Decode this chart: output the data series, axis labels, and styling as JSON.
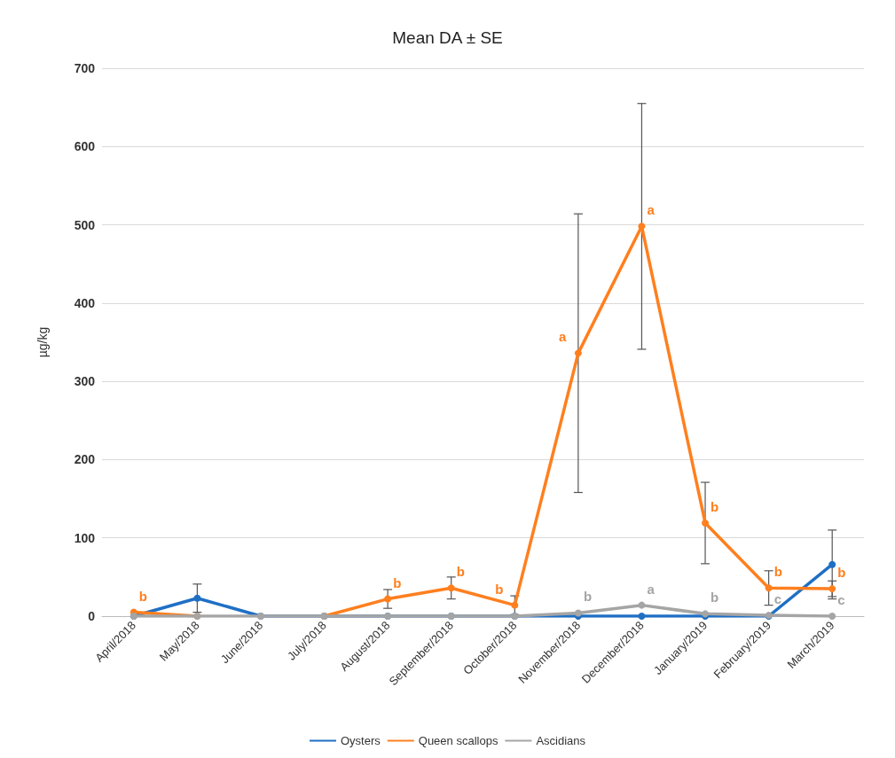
{
  "chart_data": {
    "type": "line",
    "title": "Mean DA ± SE",
    "ylabel": "µg/kg",
    "categories": [
      "April/2018",
      "May/2018",
      "June/2018",
      "July/2018",
      "August/2018",
      "September/2018",
      "October/2018",
      "November/2018",
      "December/2018",
      "January/2019",
      "February/2019",
      "March/2019"
    ],
    "series": [
      {
        "name": "Oysters",
        "color": "#1f6fc5",
        "values": [
          0,
          23,
          0,
          0,
          0,
          0,
          0,
          0,
          0,
          0,
          0,
          66
        ],
        "errors": [
          null,
          18,
          null,
          null,
          null,
          null,
          null,
          null,
          null,
          null,
          null,
          44
        ]
      },
      {
        "name": "Queen scallops",
        "color": "#ff7f1e",
        "values": [
          5,
          0,
          null,
          0,
          22,
          36,
          14,
          336,
          498,
          119,
          36,
          35
        ],
        "errors": [
          null,
          null,
          null,
          null,
          12,
          14,
          12,
          178,
          157,
          52,
          22,
          10
        ],
        "value_labels": [
          "b",
          null,
          null,
          null,
          "b",
          "b",
          "b",
          "a",
          "a",
          "b",
          "b",
          "b"
        ]
      },
      {
        "name": "Ascidians",
        "color": "#a5a5a5",
        "values": [
          0,
          0,
          0,
          0,
          0,
          0,
          0,
          4,
          14,
          3,
          1,
          0
        ],
        "value_labels": [
          null,
          null,
          null,
          null,
          null,
          null,
          null,
          "b",
          "a",
          "b",
          "c",
          "c"
        ]
      }
    ],
    "ylim": [
      0,
      700
    ],
    "yticks": [
      0,
      100,
      200,
      300,
      400,
      500,
      600,
      700
    ],
    "grid": "y",
    "legend": "bottom",
    "marker": "circle",
    "line_style": "solid"
  }
}
